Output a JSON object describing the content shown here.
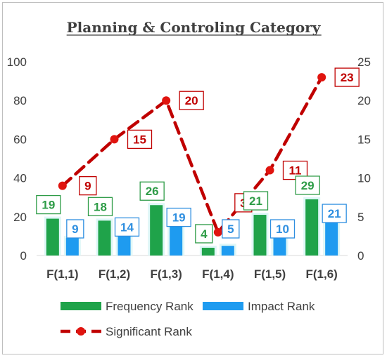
{
  "chart_data": {
    "type": "bar",
    "title": "Planning & Controling Category",
    "categories": [
      "F(1,1)",
      "F(1,2)",
      "F(1,3)",
      "F(1,4)",
      "F(1,5)",
      "F(1,6)"
    ],
    "series": [
      {
        "name": "Frequency Rank",
        "type": "bar",
        "axis": "left",
        "values": [
          19,
          18,
          26,
          4,
          21,
          29
        ],
        "color": "#1fa34a"
      },
      {
        "name": "Impact Rank",
        "type": "bar",
        "axis": "left",
        "values": [
          9,
          14,
          19,
          5,
          10,
          21
        ],
        "color": "#1e9bf0"
      },
      {
        "name": "Significant Rank",
        "type": "line",
        "axis": "right",
        "values": [
          9,
          15,
          20,
          3,
          11,
          23
        ],
        "color": "#c00000"
      }
    ],
    "y_left": {
      "ticks": [
        "0",
        "20",
        "40",
        "60",
        "80",
        "100"
      ],
      "range": [
        0,
        100
      ]
    },
    "y_right": {
      "ticks": [
        "0",
        "5",
        "10",
        "15",
        "20",
        "25"
      ],
      "range": [
        0,
        25
      ]
    },
    "grid": false,
    "legend_position": "bottom"
  }
}
